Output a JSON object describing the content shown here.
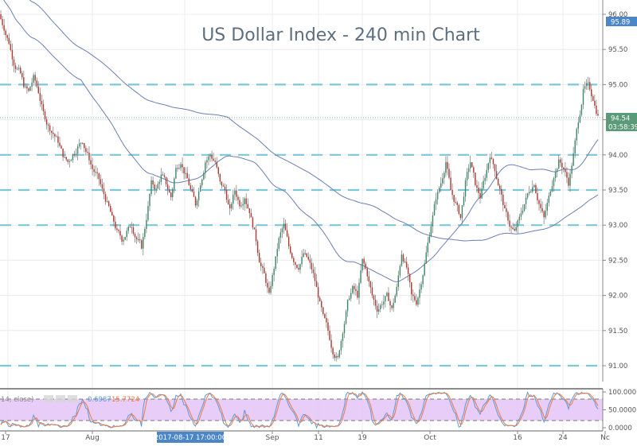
{
  "chart_data": [
    {
      "type": "candlestick",
      "title": "US Dollar Index - 240 min Chart",
      "xlabel": "",
      "ylabel": "",
      "ylim": [
        90.8,
        96.1
      ],
      "y_ticks": [
        "96.00",
        "95.50",
        "95.00",
        "94.50",
        "94.00",
        "93.50",
        "93.00",
        "92.50",
        "92.00",
        "91.50",
        "91.00"
      ],
      "x_ticks": [
        "17",
        "Aug",
        "Sep",
        "11",
        "19",
        "Oct",
        "16",
        "24",
        "Nc"
      ],
      "highlighted_x_label": "2017-08-17 17:00:00",
      "current_price": "94.54",
      "countdown": "03:58:39",
      "top_label": "95.89",
      "grid": true,
      "horizontal_levels": [
        95.0,
        94.0,
        93.5,
        93.0,
        91.0
      ],
      "approx_closes": [
        95.8,
        95.6,
        95.3,
        95.2,
        95.0,
        94.9,
        95.1,
        94.9,
        94.6,
        94.4,
        94.3,
        94.2,
        94.0,
        93.9,
        94.0,
        94.1,
        94.2,
        94.0,
        93.8,
        93.7,
        93.5,
        93.3,
        93.1,
        92.9,
        92.8,
        92.9,
        93.0,
        92.8,
        92.7,
        93.1,
        93.6,
        93.5,
        93.7,
        93.6,
        93.4,
        93.8,
        93.9,
        93.7,
        93.5,
        93.3,
        93.6,
        93.9,
        94.0,
        93.9,
        93.6,
        93.5,
        93.2,
        93.5,
        93.3,
        93.4,
        93.2,
        92.9,
        92.5,
        92.3,
        92.0,
        92.4,
        92.8,
        93.0,
        92.7,
        92.5,
        92.4,
        92.6,
        92.5,
        92.3,
        92.0,
        91.7,
        91.5,
        91.2,
        91.1,
        91.5,
        91.9,
        92.1,
        92.0,
        92.5,
        92.3,
        92.0,
        91.8,
        91.9,
        92.0,
        91.8,
        92.1,
        92.6,
        92.4,
        92.0,
        91.9,
        92.2,
        92.6,
        93.0,
        93.4,
        93.6,
        93.9,
        93.5,
        93.3,
        93.1,
        93.6,
        93.9,
        93.6,
        93.4,
        93.7,
        94.0,
        93.8,
        93.5,
        93.2,
        93.0,
        92.9,
        93.1,
        93.3,
        93.5,
        93.6,
        93.3,
        93.1,
        93.4,
        93.7,
        93.9,
        93.8,
        93.6,
        94.0,
        94.5,
        94.9,
        95.0,
        94.8,
        94.54
      ],
      "series": [
        {
          "name": "Short MA",
          "color": "#6b7fb2"
        },
        {
          "name": "Long MA",
          "color": "#6b7fb2"
        }
      ]
    },
    {
      "type": "line",
      "title": "Stochastic (14, close)",
      "indicator_label": "14, close)",
      "value_k": "0.6987",
      "value_d": "15.7724",
      "y_ticks": [
        "100.000",
        "50.0000",
        "0.0000"
      ],
      "ylim": [
        0,
        100
      ],
      "bands": [
        80,
        20
      ],
      "band_color": "#e3c4f7",
      "series": [
        {
          "name": "%K",
          "color": "#5b9bd5"
        },
        {
          "name": "%D",
          "color": "#f07840"
        }
      ]
    }
  ],
  "colors": {
    "up": "#3d8a6a",
    "down": "#b03a33",
    "level": "#7dc8d8",
    "price_label": "#5a9a78",
    "top_label": "#4a86c8",
    "date_label": "#4a86c8"
  }
}
